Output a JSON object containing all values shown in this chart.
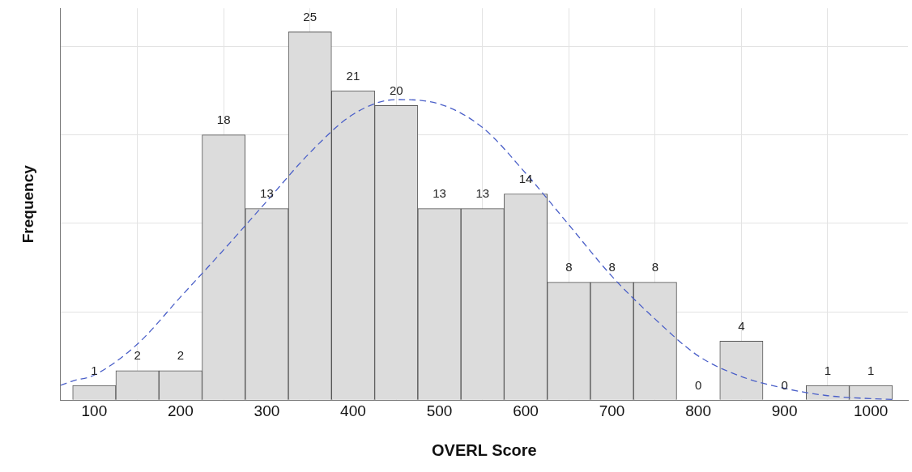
{
  "chart_data": {
    "type": "histogram",
    "xlabel": "OVERL Score",
    "ylabel": "Frequency",
    "bins": [
      75,
      125,
      175,
      225,
      275,
      325,
      375,
      425,
      475,
      525,
      575,
      625,
      675,
      725,
      775,
      825,
      875,
      925,
      975,
      1025
    ],
    "values": [
      1,
      2,
      2,
      18,
      13,
      25,
      21,
      20,
      13,
      13,
      14,
      8,
      8,
      8,
      0,
      4,
      0,
      1,
      1
    ],
    "color": "#dcdcdc",
    "value_labels": [
      "1",
      "2",
      "2",
      "18",
      "13",
      "25",
      "21",
      "20",
      "13",
      "13",
      "14",
      "8",
      "8",
      "8",
      "0",
      "4",
      "0",
      "1",
      "1"
    ],
    "grid": true,
    "xlim": [
      61,
      1043
    ],
    "xticks": [
      100,
      200,
      300,
      400,
      500,
      600,
      700,
      800,
      900,
      1000
    ],
    "ylim": [
      0,
      26.6
    ],
    "yticks": [
      {
        "value": 0,
        "label": null
      },
      {
        "value": 6,
        "label": null
      },
      {
        "value": 12,
        "label": null
      },
      {
        "value": 18,
        "label": null
      },
      {
        "value": 24,
        "label": null
      }
    ],
    "series": [
      {
        "type": "line",
        "color": "#4a5fc8",
        "line_style": "dashed",
        "marker": "none",
        "x": [
          61,
          75,
          100,
          150,
          200,
          250,
          300,
          350,
          400,
          450,
          500,
          550,
          600,
          650,
          700,
          750,
          800,
          850,
          900,
          950,
          1000,
          1025
        ],
        "values": [
          1.0,
          1.3,
          1.7,
          3.8,
          7.0,
          10.2,
          13.5,
          16.8,
          19.4,
          20.4,
          20.1,
          18.5,
          15.4,
          11.9,
          8.4,
          5.5,
          3.0,
          1.6,
          0.8,
          0.3,
          0.1,
          0.05
        ]
      }
    ]
  }
}
